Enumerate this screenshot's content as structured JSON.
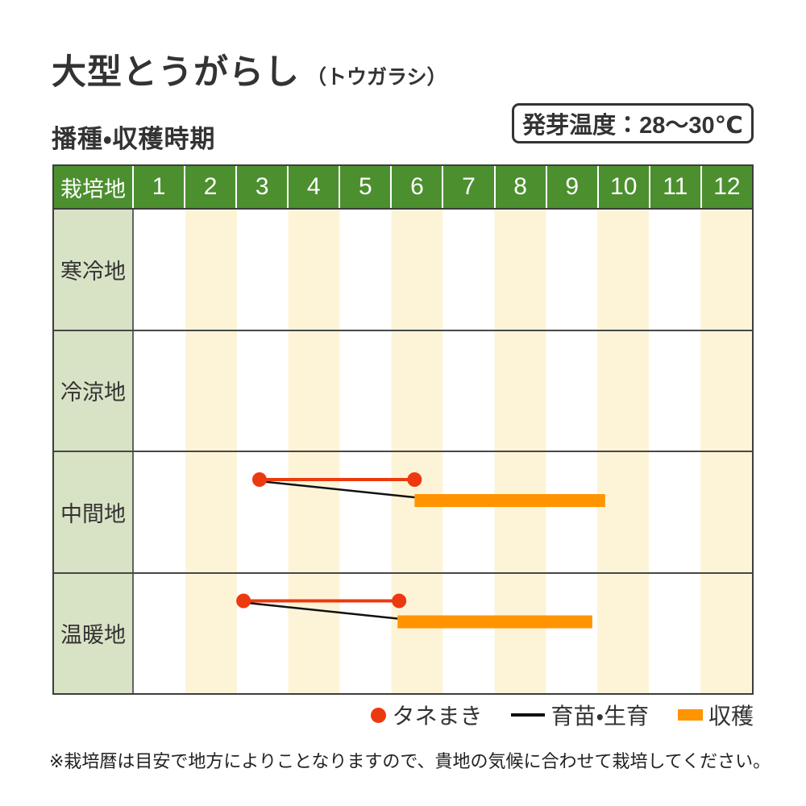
{
  "title": {
    "main": "大型とうがらし",
    "reading": "（トウガラシ）"
  },
  "germination": {
    "label": "発芽温度：28〜30℃"
  },
  "section": {
    "title": "播種・収穫時期"
  },
  "table": {
    "corner_label": "栽培地",
    "months": [
      "1",
      "2",
      "3",
      "4",
      "5",
      "6",
      "7",
      "8",
      "9",
      "10",
      "11",
      "12"
    ]
  },
  "chart_data": {
    "type": "gantt",
    "title": "播種・収穫時期（大型とうがらし）",
    "x_unit": "month",
    "x_range": [
      1,
      13
    ],
    "grid": "alternating-month-stripes",
    "legend_position": "bottom-right",
    "regions": [
      {
        "name": "寒冷地",
        "sowing": null,
        "nursery": null,
        "harvest": null
      },
      {
        "name": "冷涼地",
        "sowing": null,
        "nursery": null,
        "harvest": null
      },
      {
        "name": "中間地",
        "sowing": {
          "start": 3.44,
          "end": 6.45
        },
        "nursery": {
          "start": 3.44,
          "end": 6.45
        },
        "harvest": {
          "start": 6.45,
          "end": 10.15
        }
      },
      {
        "name": "温暖地",
        "sowing": {
          "start": 3.13,
          "end": 6.15
        },
        "nursery": {
          "start": 3.13,
          "end": 6.12
        },
        "harvest": {
          "start": 6.12,
          "end": 9.9
        }
      }
    ],
    "legend": [
      {
        "marker": "dot",
        "label": "タネまき"
      },
      {
        "marker": "line",
        "label": "育苗・生育"
      },
      {
        "marker": "bar",
        "label": "収穫"
      }
    ],
    "colors": {
      "sowing_dot": "#ed390f",
      "sowing_line": "#ed390f",
      "nursery_line": "#111111",
      "harvest_bar": "#ff9400",
      "header_bg": "#4c8f2f",
      "header_text": "#ffffff",
      "row_label_bg": "#d8e2c5",
      "stripe": "#fdf4d8",
      "border": "#3d3d3d"
    }
  },
  "note": "※栽培暦は目安で地方によりことなりますので、貴地の気候に合わせて栽培してください。"
}
